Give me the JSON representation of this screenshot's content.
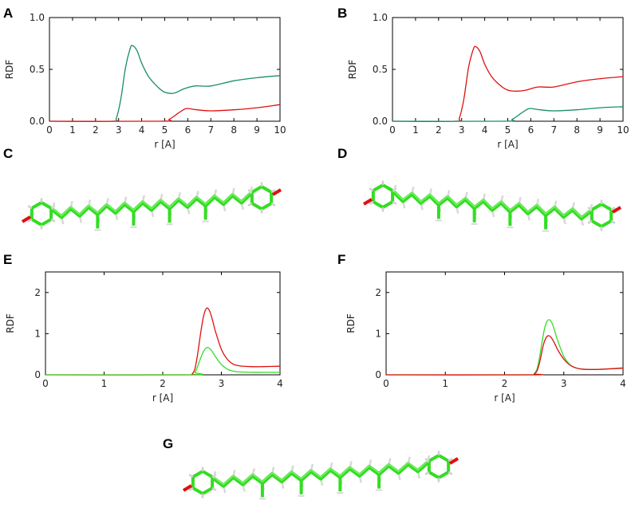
{
  "colors": {
    "red": "#e01010",
    "teal": "#1a8f63",
    "green": "#33dd22"
  },
  "chart_data": [
    {
      "panel": "A",
      "type": "line",
      "xlabel": "r [A]",
      "ylabel": "RDF",
      "xlim": [
        0,
        10
      ],
      "ylim": [
        0,
        1.0
      ],
      "xticks": [
        "0",
        "1",
        "2",
        "3",
        "4",
        "5",
        "6",
        "7",
        "8",
        "9",
        "10"
      ],
      "yticks": [
        "0.0",
        "0.5",
        "1.0"
      ],
      "ytick_values": [
        0,
        0.5,
        1.0
      ],
      "series": [
        {
          "name": "teal",
          "color": "#1a8f63",
          "x": [
            0,
            2.7,
            2.9,
            3.1,
            3.3,
            3.5,
            3.6,
            3.8,
            4.0,
            4.3,
            4.7,
            5.0,
            5.4,
            5.8,
            6.3,
            7.0,
            8.0,
            9.0,
            10.0
          ],
          "y": [
            0,
            0,
            0.03,
            0.22,
            0.52,
            0.7,
            0.73,
            0.68,
            0.56,
            0.43,
            0.33,
            0.28,
            0.27,
            0.31,
            0.34,
            0.34,
            0.39,
            0.42,
            0.44
          ]
        },
        {
          "name": "red",
          "color": "#e01010",
          "x": [
            0,
            4.8,
            5.2,
            5.6,
            5.9,
            6.1,
            6.4,
            7.0,
            8.0,
            9.0,
            10.0
          ],
          "y": [
            0,
            0,
            0.02,
            0.08,
            0.12,
            0.12,
            0.11,
            0.1,
            0.11,
            0.13,
            0.16
          ]
        }
      ]
    },
    {
      "panel": "B",
      "type": "line",
      "xlabel": "r [A]",
      "ylabel": "RDF",
      "xlim": [
        0,
        10
      ],
      "ylim": [
        0,
        1.0
      ],
      "xticks": [
        "0",
        "1",
        "2",
        "3",
        "4",
        "5",
        "6",
        "7",
        "8",
        "9",
        "10"
      ],
      "yticks": [
        "0.0",
        "0.5",
        "1.0"
      ],
      "ytick_values": [
        0,
        0.5,
        1.0
      ],
      "series": [
        {
          "name": "red",
          "color": "#e01010",
          "x": [
            0,
            2.7,
            2.9,
            3.1,
            3.3,
            3.5,
            3.6,
            3.8,
            4.0,
            4.3,
            4.7,
            5.0,
            5.4,
            5.8,
            6.3,
            7.0,
            8.0,
            9.0,
            10.0
          ],
          "y": [
            0,
            0,
            0.03,
            0.22,
            0.52,
            0.69,
            0.72,
            0.67,
            0.55,
            0.43,
            0.34,
            0.3,
            0.29,
            0.3,
            0.33,
            0.33,
            0.38,
            0.41,
            0.43
          ]
        },
        {
          "name": "teal",
          "color": "#1a8f63",
          "x": [
            0,
            4.8,
            5.2,
            5.6,
            5.9,
            6.1,
            6.4,
            7.0,
            8.0,
            9.0,
            10.0
          ],
          "y": [
            0,
            0,
            0.02,
            0.08,
            0.12,
            0.12,
            0.11,
            0.1,
            0.11,
            0.13,
            0.14
          ]
        }
      ]
    },
    {
      "panel": "E",
      "type": "line",
      "xlabel": "r [A]",
      "ylabel": "RDF",
      "xlim": [
        0,
        4
      ],
      "ylim": [
        0,
        2.5
      ],
      "xticks": [
        "0",
        "1",
        "2",
        "3",
        "4"
      ],
      "yticks": [
        "0",
        "1",
        "2"
      ],
      "ytick_values": [
        0,
        1,
        2
      ],
      "series": [
        {
          "name": "red",
          "color": "#e01010",
          "x": [
            0,
            2.45,
            2.5,
            2.55,
            2.6,
            2.65,
            2.7,
            2.75,
            2.8,
            2.85,
            2.9,
            3.0,
            3.1,
            3.2,
            3.3,
            3.5,
            3.7,
            4.0
          ],
          "y": [
            0,
            0,
            0.02,
            0.15,
            0.55,
            1.05,
            1.45,
            1.62,
            1.55,
            1.32,
            1.05,
            0.62,
            0.38,
            0.26,
            0.22,
            0.2,
            0.2,
            0.21
          ]
        },
        {
          "name": "green",
          "color": "#33dd22",
          "x": [
            0,
            2.48,
            2.55,
            2.6,
            2.65,
            2.7,
            2.75,
            2.8,
            2.85,
            2.9,
            3.0,
            3.1,
            3.2,
            3.3,
            3.5,
            3.7,
            4.0
          ],
          "y": [
            0,
            0,
            0.06,
            0.22,
            0.42,
            0.58,
            0.66,
            0.64,
            0.55,
            0.44,
            0.25,
            0.14,
            0.09,
            0.07,
            0.06,
            0.06,
            0.06
          ]
        }
      ]
    },
    {
      "panel": "F",
      "type": "line",
      "xlabel": "r [A]",
      "ylabel": "RDF",
      "xlim": [
        0,
        4
      ],
      "ylim": [
        0,
        2.5
      ],
      "xticks": [
        "0",
        "1",
        "2",
        "3",
        "4"
      ],
      "yticks": [
        "0",
        "1",
        "2"
      ],
      "ytick_values": [
        0,
        1,
        2
      ],
      "series": [
        {
          "name": "green",
          "color": "#33dd22",
          "x": [
            0,
            2.45,
            2.5,
            2.55,
            2.6,
            2.65,
            2.7,
            2.75,
            2.8,
            2.85,
            2.9,
            3.0,
            3.1,
            3.2,
            3.3,
            3.5,
            3.7,
            4.0
          ],
          "y": [
            0,
            0,
            0.03,
            0.15,
            0.5,
            0.95,
            1.25,
            1.34,
            1.26,
            1.05,
            0.82,
            0.45,
            0.25,
            0.17,
            0.14,
            0.13,
            0.14,
            0.17
          ]
        },
        {
          "name": "red",
          "color": "#e01010",
          "x": [
            0,
            2.45,
            2.5,
            2.55,
            2.6,
            2.65,
            2.7,
            2.75,
            2.8,
            2.85,
            2.9,
            3.0,
            3.1,
            3.2,
            3.3,
            3.5,
            3.7,
            4.0
          ],
          "y": [
            0,
            0,
            0.02,
            0.1,
            0.35,
            0.7,
            0.9,
            0.95,
            0.88,
            0.75,
            0.6,
            0.38,
            0.24,
            0.17,
            0.14,
            0.13,
            0.14,
            0.16
          ]
        }
      ]
    }
  ],
  "molecules": [
    {
      "panel": "C",
      "description_icon": "molecule-structure"
    },
    {
      "panel": "D",
      "description_icon": "molecule-structure"
    },
    {
      "panel": "G",
      "description_icon": "molecule-structure"
    }
  ]
}
